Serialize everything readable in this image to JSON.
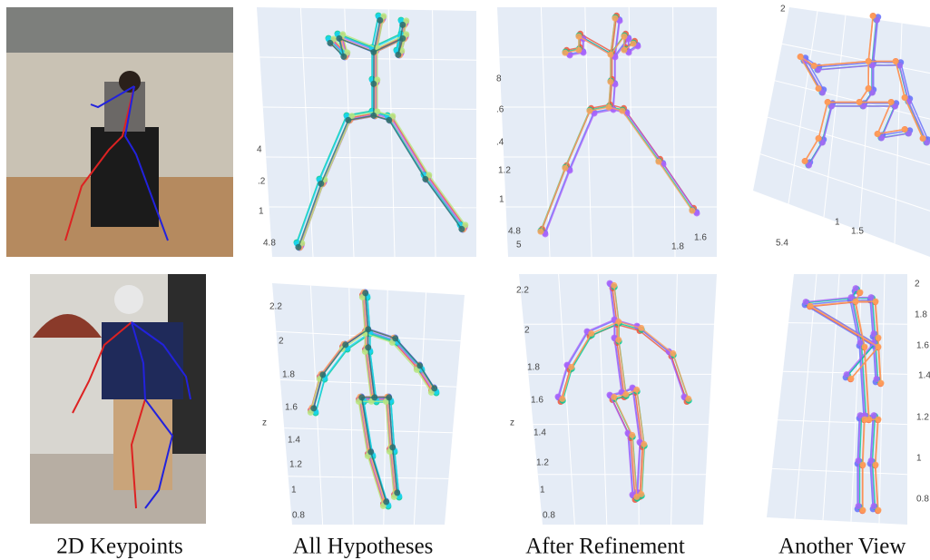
{
  "captions": [
    "2D Keypoints",
    "All Hypotheses",
    "After Refinement",
    "Another View"
  ],
  "panels": [
    {
      "ticks": [
        "4",
        ".2",
        "1",
        "4.8"
      ]
    },
    {
      "ticks": [
        "8",
        ".6",
        ".4",
        "1.2",
        "1",
        "4.8",
        "5",
        "1.8",
        "1.6"
      ]
    },
    {
      "ticks": [
        "2",
        "1",
        "1.5",
        "5.4"
      ]
    },
    {
      "ticks": [
        "2.2",
        "2",
        "1.8",
        "1.6",
        "z",
        "1.4",
        "1.2",
        "1",
        "0.8"
      ]
    },
    {
      "ticks": [
        "2.2",
        "2",
        "1.8",
        "1.6",
        "z",
        "1.4",
        "1.2",
        "1",
        "0.8"
      ]
    },
    {
      "ticks": [
        "2",
        "1.8",
        "1.6",
        "1.4",
        "1.2",
        "1",
        "0.8"
      ]
    }
  ]
}
